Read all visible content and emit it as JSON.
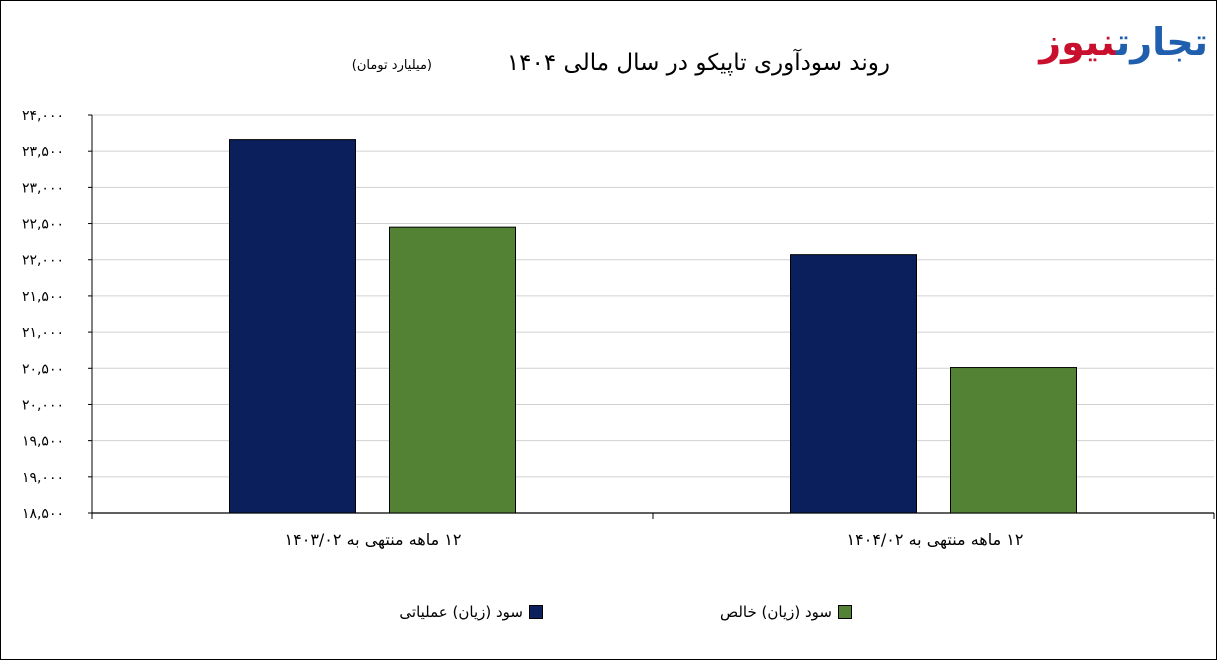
{
  "brand": {
    "logo_text_a": "نیوز",
    "logo_text_b": "تجارت",
    "color_a": "#c8102e",
    "color_b": "#1f5fae"
  },
  "chart_data": {
    "type": "bar",
    "title": "روند سودآوری تاپیکو در سال مالی ۱۴۰۴",
    "subtitle": "(میلیارد تومان)",
    "categories": [
      "۱۲ ماهه منتهی به ۱۴۰۳/۰۲",
      "۱۲ ماهه منتهی به ۱۴۰۴/۰۲"
    ],
    "series": [
      {
        "name": "سود (زیان) عملیاتی",
        "color": "#0a1f5c",
        "values": [
          23660,
          22070
        ]
      },
      {
        "name": "سود (زیان) خالص",
        "color": "#548235",
        "values": [
          22450,
          20510
        ]
      }
    ],
    "ylim": [
      18500,
      24000
    ],
    "yticks": [
      18500,
      19000,
      19500,
      20000,
      20500,
      21000,
      21500,
      22000,
      22500,
      23000,
      23500,
      24000
    ],
    "ytick_labels": [
      "۱۸,۵۰۰",
      "۱۹,۰۰۰",
      "۱۹,۵۰۰",
      "۲۰,۰۰۰",
      "۲۰,۵۰۰",
      "۲۱,۰۰۰",
      "۲۱,۵۰۰",
      "۲۲,۰۰۰",
      "۲۲,۵۰۰",
      "۲۳,۰۰۰",
      "۲۳,۵۰۰",
      "۲۴,۰۰۰"
    ],
    "grid": true,
    "legend_position": "bottom",
    "xlabel": "",
    "ylabel": ""
  }
}
